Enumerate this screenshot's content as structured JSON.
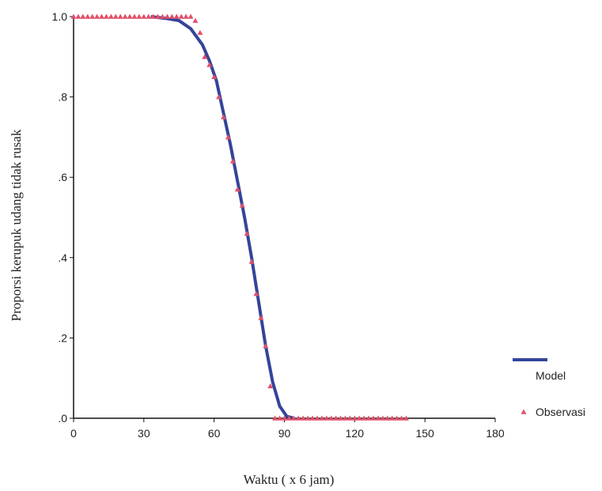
{
  "chart_data": {
    "type": "line",
    "x_label": "Waktu ( x 6 jam)",
    "y_label": "Proporsi kerupuk udang tidak rusak",
    "xlim": [
      0,
      180
    ],
    "xticks": [
      0,
      30,
      60,
      90,
      120,
      150,
      180
    ],
    "ylim": [
      0,
      1
    ],
    "yticks": [
      {
        "value": 0,
        "label": ".0"
      },
      {
        "value": 0.2,
        "label": ".2"
      },
      {
        "value": 0.4,
        "label": ".4"
      },
      {
        "value": 0.6,
        "label": ".6"
      },
      {
        "value": 0.8,
        "label": ".8"
      },
      {
        "value": 1,
        "label": "1.0"
      }
    ],
    "series": [
      {
        "name": "Model",
        "type": "line",
        "color": "#34449a",
        "x": [
          33,
          40,
          45,
          50,
          55,
          58,
          61,
          64,
          67,
          70,
          73,
          76,
          79,
          82,
          85,
          88,
          91,
          94
        ],
        "values": [
          1,
          0.995,
          0.99,
          0.97,
          0.93,
          0.89,
          0.84,
          0.76,
          0.68,
          0.59,
          0.5,
          0.4,
          0.29,
          0.18,
          0.09,
          0.03,
          0.005,
          0
        ]
      },
      {
        "name": "Observasi",
        "type": "scatter",
        "color": "#e0506a",
        "x": [
          0,
          2,
          4,
          6,
          8,
          10,
          12,
          14,
          16,
          18,
          20,
          22,
          24,
          26,
          28,
          30,
          32,
          34,
          36,
          38,
          40,
          42,
          44,
          46,
          48,
          50,
          52,
          54,
          56,
          58,
          60,
          62,
          64,
          66,
          68,
          70,
          72,
          74,
          76,
          78,
          80,
          82,
          84,
          86,
          88,
          90,
          92,
          94,
          96,
          98,
          100,
          102,
          104,
          106,
          108,
          110,
          112,
          114,
          116,
          118,
          120,
          122,
          124,
          126,
          128,
          130,
          132,
          134,
          136,
          138,
          140,
          142
        ],
        "values": [
          1,
          1,
          1,
          1,
          1,
          1,
          1,
          1,
          1,
          1,
          1,
          1,
          1,
          1,
          1,
          1,
          1,
          1,
          1,
          1,
          1,
          1,
          1,
          1,
          1,
          1,
          0.99,
          0.96,
          0.9,
          0.88,
          0.85,
          0.8,
          0.75,
          0.7,
          0.64,
          0.57,
          0.53,
          0.46,
          0.39,
          0.31,
          0.25,
          0.18,
          0.08,
          0,
          0,
          0,
          0,
          0,
          0,
          0,
          0,
          0,
          0,
          0,
          0,
          0,
          0,
          0,
          0,
          0,
          0,
          0,
          0,
          0,
          0,
          0,
          0,
          0,
          0,
          0,
          0,
          0
        ]
      }
    ]
  }
}
